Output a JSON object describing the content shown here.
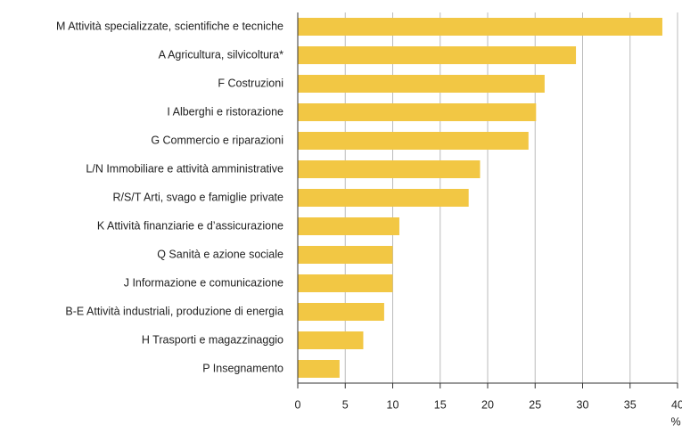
{
  "chart_data": {
    "type": "barh",
    "categories": [
      "M Attività specializzate, scientifiche e tecniche",
      "A Agricultura, silvicoltura*",
      "F Costruzioni",
      "I Alberghi e ristorazione",
      "G Commercio e riparazioni",
      "L/N Immobiliare e attività amministrative",
      "R/S/T Arti, svago e famiglie private",
      "K Attività finanziarie e d’assicurazione",
      "Q Sanità e azione sociale",
      "J Informazione e comunicazione",
      "B-E Attività industriali, produzione di energia",
      "H Trasporti e magazzinaggio",
      "P Insegnamento"
    ],
    "values": [
      38.4,
      29.3,
      26.0,
      25.1,
      24.3,
      19.2,
      18.0,
      10.7,
      10.0,
      10.0,
      9.1,
      6.9,
      4.4
    ],
    "color": "#f2c744",
    "xlim": [
      0,
      40
    ],
    "xticks": [
      0,
      5,
      10,
      15,
      20,
      25,
      30,
      35,
      40
    ],
    "xlabel": "%",
    "grid": true
  }
}
